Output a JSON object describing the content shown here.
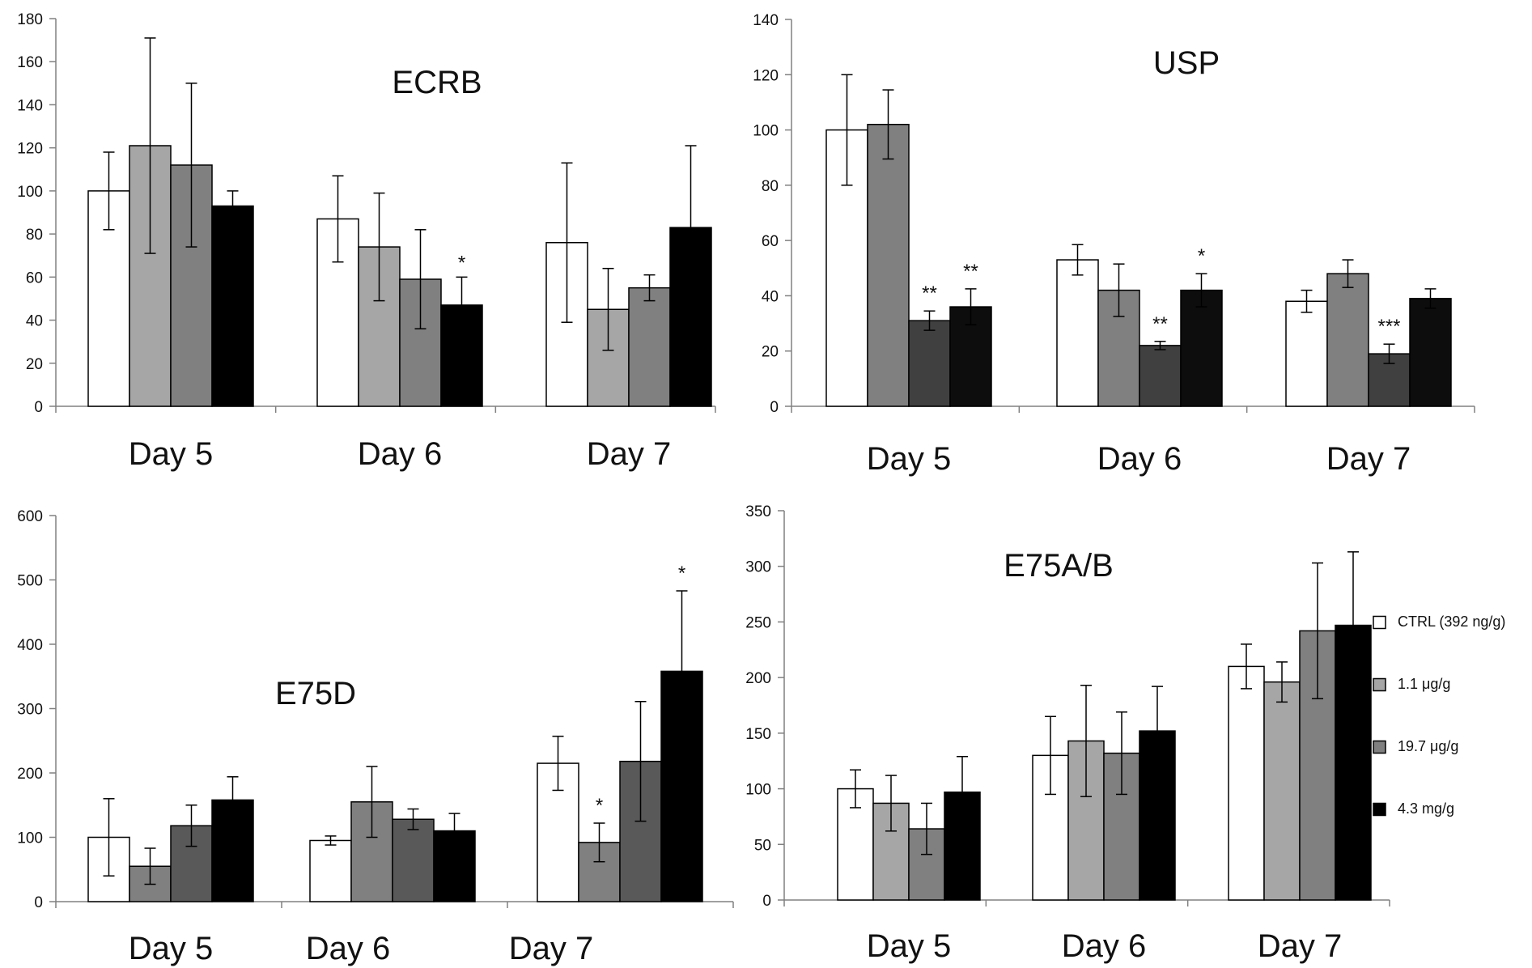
{
  "chart_data": [
    {
      "type": "bar",
      "title": "ECRB",
      "categories": [
        "Day 5",
        "Day 6",
        "Day 7"
      ],
      "ylim": [
        0,
        180
      ],
      "yticks": [
        0,
        20,
        40,
        60,
        80,
        100,
        120,
        140,
        160,
        180
      ],
      "grid": false,
      "series": [
        {
          "values": [
            100,
            87,
            76
          ],
          "errors": [
            18,
            20,
            37
          ],
          "color": "#ffffff",
          "significance": [
            "",
            "",
            ""
          ]
        },
        {
          "values": [
            121,
            74,
            45
          ],
          "errors": [
            50,
            25,
            19
          ],
          "color": "#a6a6a6",
          "significance": [
            "",
            "",
            ""
          ]
        },
        {
          "values": [
            112,
            59,
            55
          ],
          "errors": [
            38,
            23,
            6
          ],
          "color": "#808080",
          "significance": [
            "",
            "",
            ""
          ]
        },
        {
          "values": [
            93,
            47,
            83
          ],
          "errors": [
            7,
            13,
            38
          ],
          "color": "#000000",
          "significance": [
            "",
            "*",
            ""
          ]
        }
      ]
    },
    {
      "type": "bar",
      "title": "USP",
      "categories": [
        "Day 5",
        "Day 6",
        "Day 7"
      ],
      "ylim": [
        0,
        140
      ],
      "yticks": [
        0,
        20,
        40,
        60,
        80,
        100,
        120,
        140
      ],
      "grid": false,
      "series": [
        {
          "values": [
            100,
            53,
            38
          ],
          "errors": [
            20,
            5.5,
            4
          ],
          "color": "#ffffff",
          "significance": [
            "",
            "",
            ""
          ]
        },
        {
          "values": [
            102,
            42,
            48
          ],
          "errors": [
            12.5,
            9.5,
            5
          ],
          "color": "#808080",
          "significance": [
            "",
            "",
            ""
          ]
        },
        {
          "values": [
            31,
            22,
            19
          ],
          "errors": [
            3.5,
            1.5,
            3.5
          ],
          "color": "#404040",
          "significance": [
            "**",
            "**",
            "***"
          ]
        },
        {
          "values": [
            36,
            42,
            39
          ],
          "errors": [
            6.5,
            6,
            3.5
          ],
          "color": "#0d0d0d",
          "significance": [
            "**",
            "*",
            ""
          ]
        }
      ]
    },
    {
      "type": "bar",
      "title": "E75D",
      "categories": [
        "Day 5",
        "Day 6",
        "Day 7"
      ],
      "ylim": [
        0,
        600
      ],
      "yticks": [
        0,
        100,
        200,
        300,
        400,
        500,
        600
      ],
      "grid": false,
      "series": [
        {
          "values": [
            100,
            95,
            215
          ],
          "errors": [
            60,
            7,
            42
          ],
          "color": "#ffffff",
          "significance": [
            "",
            "",
            ""
          ]
        },
        {
          "values": [
            55,
            155,
            92
          ],
          "errors": [
            28,
            55,
            30
          ],
          "color": "#808080",
          "significance": [
            "",
            "",
            "*"
          ]
        },
        {
          "values": [
            118,
            128,
            218
          ],
          "errors": [
            32,
            16,
            93
          ],
          "color": "#595959",
          "significance": [
            "",
            "",
            ""
          ]
        },
        {
          "values": [
            158,
            110,
            358
          ],
          "errors": [
            36,
            27,
            125
          ],
          "color": "#000000",
          "significance": [
            "",
            "",
            "*"
          ]
        }
      ]
    },
    {
      "type": "bar",
      "title": "E75A/B",
      "categories": [
        "Day 5",
        "Day 6",
        "Day 7"
      ],
      "ylim": [
        0,
        350
      ],
      "yticks": [
        0,
        50,
        100,
        150,
        200,
        250,
        300,
        350
      ],
      "grid": false,
      "legend": "right",
      "series": [
        {
          "name": "CTRL (392 ng/g)",
          "values": [
            100,
            130,
            210
          ],
          "errors": [
            17,
            35,
            20
          ],
          "color": "#ffffff",
          "significance": [
            "",
            "",
            ""
          ]
        },
        {
          "name": "1.1 μg/g",
          "values": [
            87,
            143,
            196
          ],
          "errors": [
            25,
            50,
            18
          ],
          "color": "#a6a6a6",
          "significance": [
            "",
            "",
            ""
          ]
        },
        {
          "name": "19.7 μg/g",
          "values": [
            64,
            132,
            242
          ],
          "errors": [
            23,
            37,
            61
          ],
          "color": "#808080",
          "significance": [
            "",
            "",
            ""
          ]
        },
        {
          "name": "4.3 mg/g",
          "values": [
            97,
            152,
            247
          ],
          "errors": [
            32,
            40,
            66
          ],
          "color": "#000000",
          "significance": [
            "",
            "",
            ""
          ]
        }
      ]
    }
  ]
}
